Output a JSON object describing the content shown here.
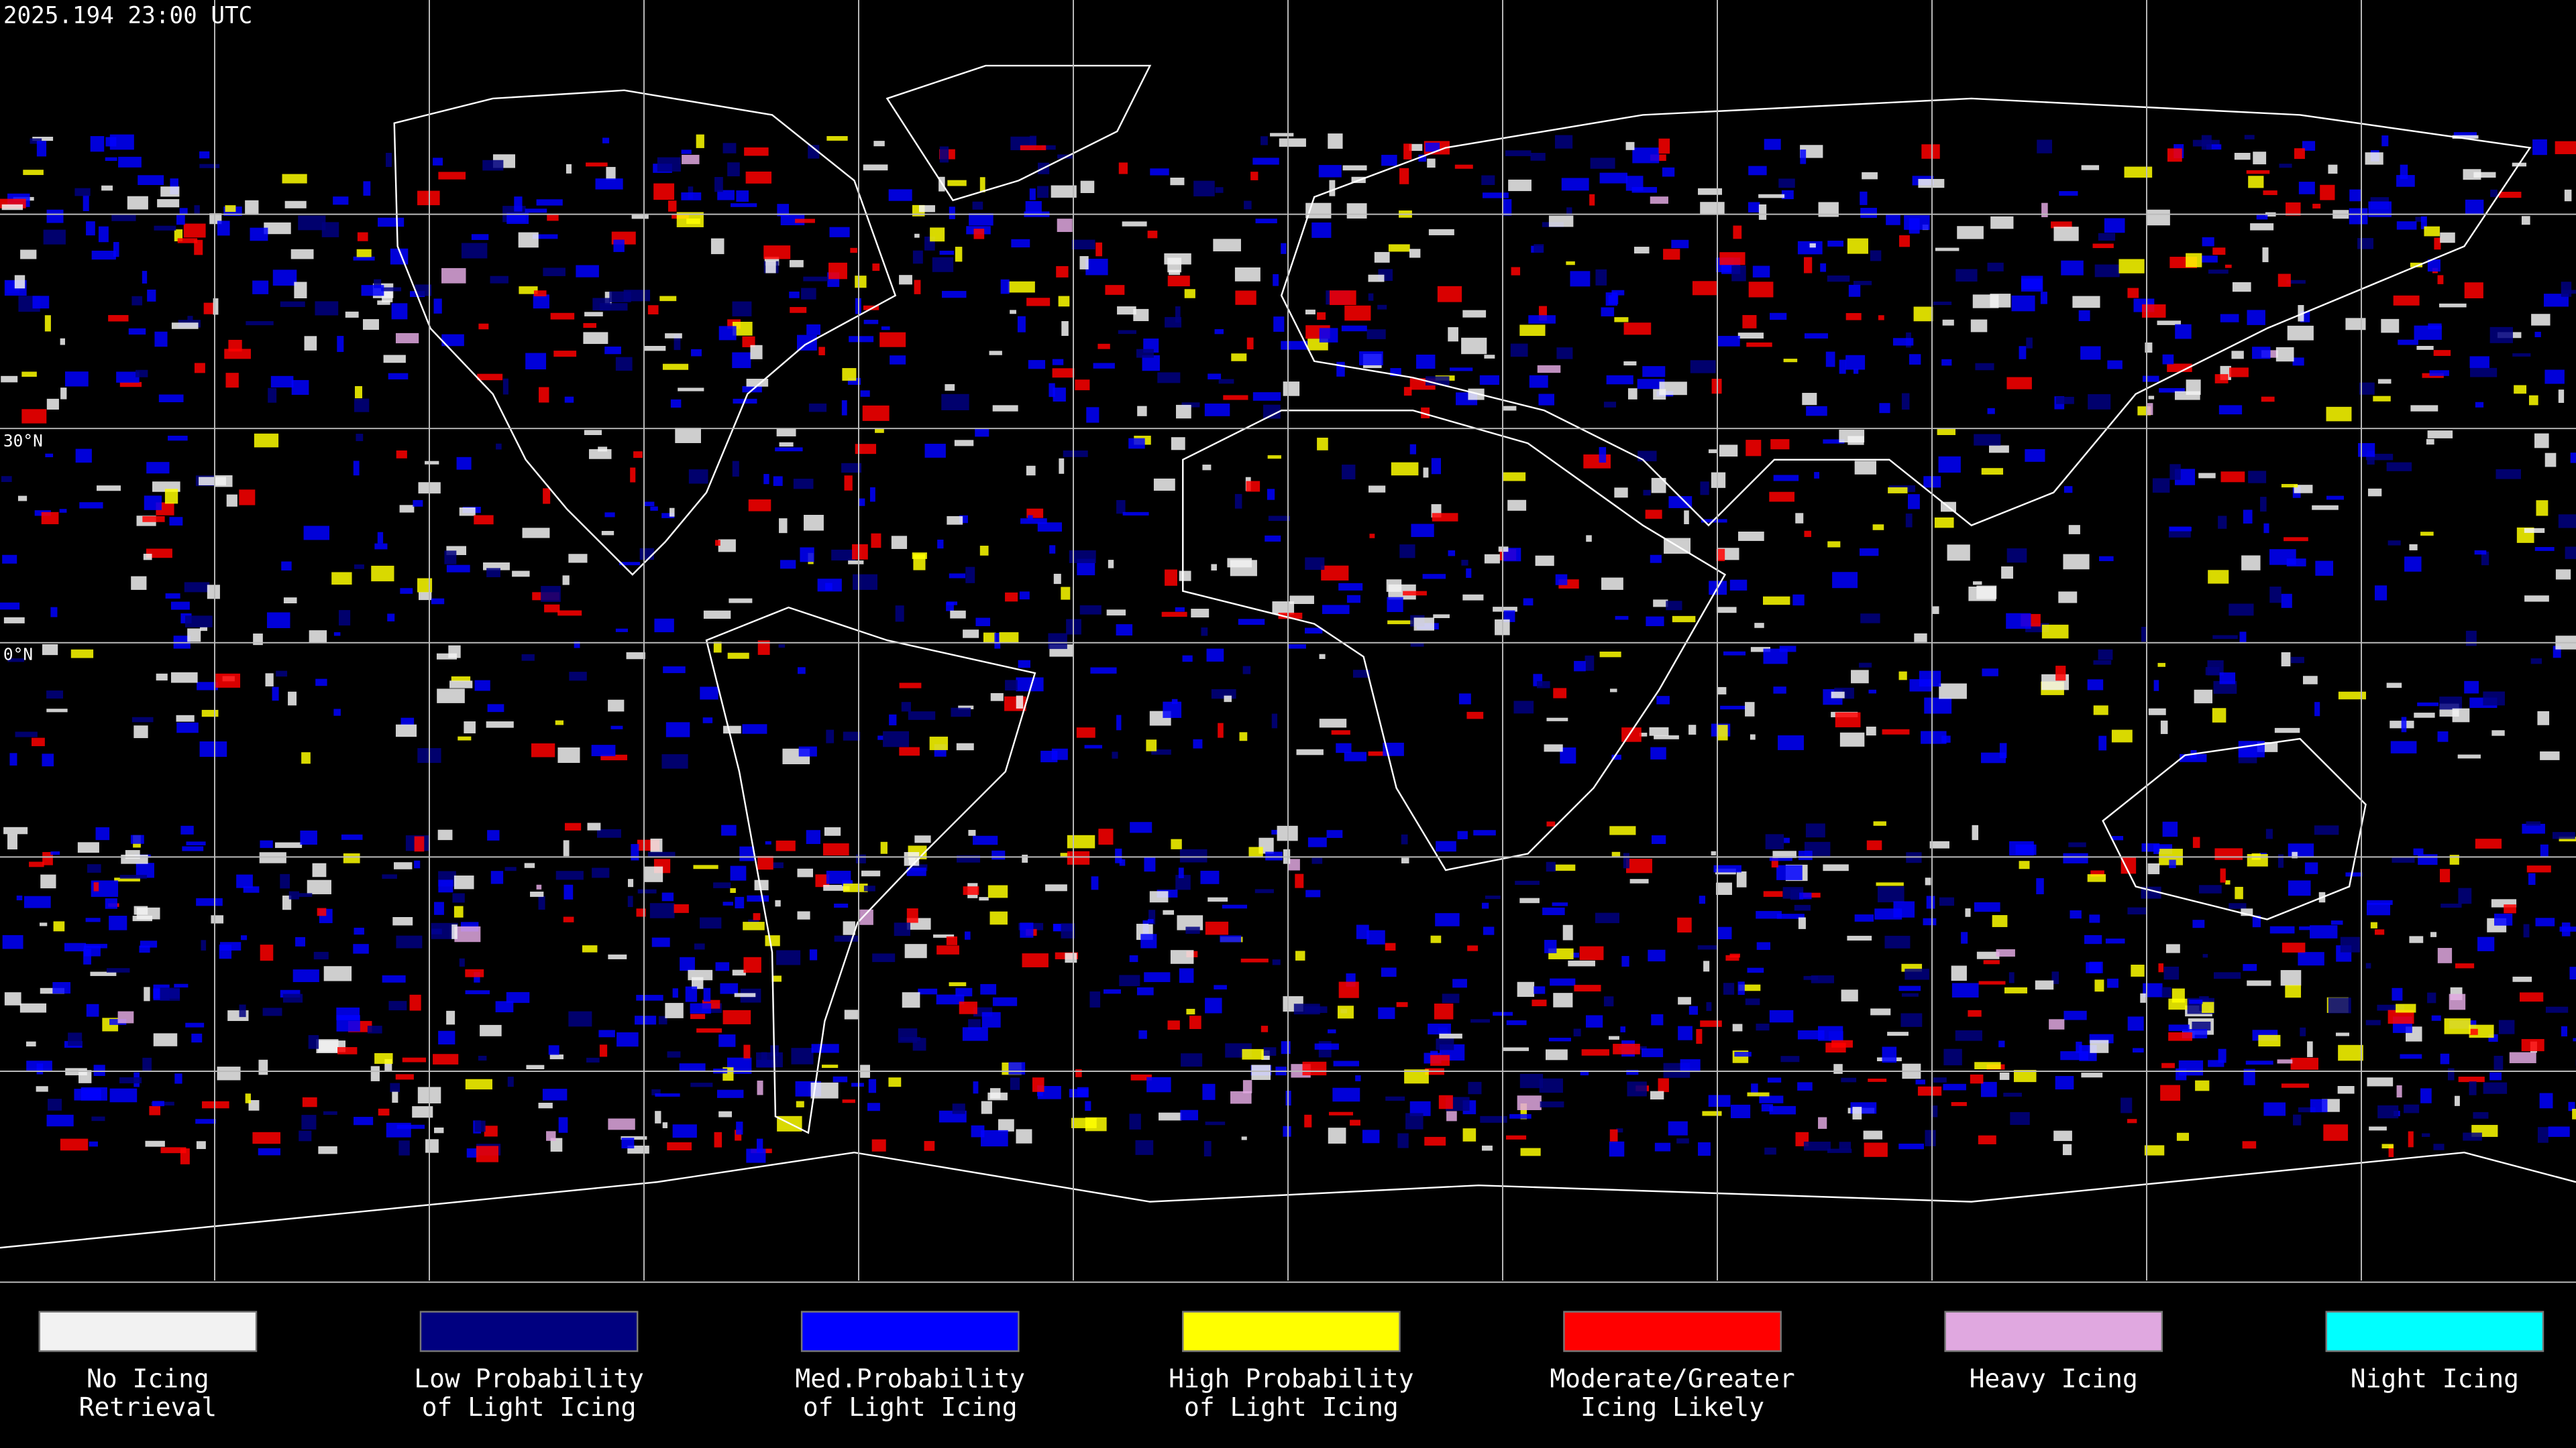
{
  "header": {
    "timestamp": "2025.194 23:00 UTC"
  },
  "map": {
    "latitude_labels": [
      "30°N",
      "0°N"
    ]
  },
  "legend": [
    {
      "label_lines": [
        "No Icing",
        "Retrieval"
      ],
      "color": "#f2f2f2"
    },
    {
      "label_lines": [
        "Low Probability",
        "of Light Icing"
      ],
      "color": "#000080"
    },
    {
      "label_lines": [
        "Med.Probability",
        "of Light Icing"
      ],
      "color": "#0000ff"
    },
    {
      "label_lines": [
        "High Probability",
        "of Light Icing"
      ],
      "color": "#ffff00"
    },
    {
      "label_lines": [
        "Moderate/Greater",
        "Icing Likely"
      ],
      "color": "#ff0000"
    },
    {
      "label_lines": [
        "Heavy Icing"
      ],
      "color": "#e0a8e0"
    },
    {
      "label_lines": [
        "Night Icing"
      ],
      "color": "#00ffff"
    }
  ]
}
